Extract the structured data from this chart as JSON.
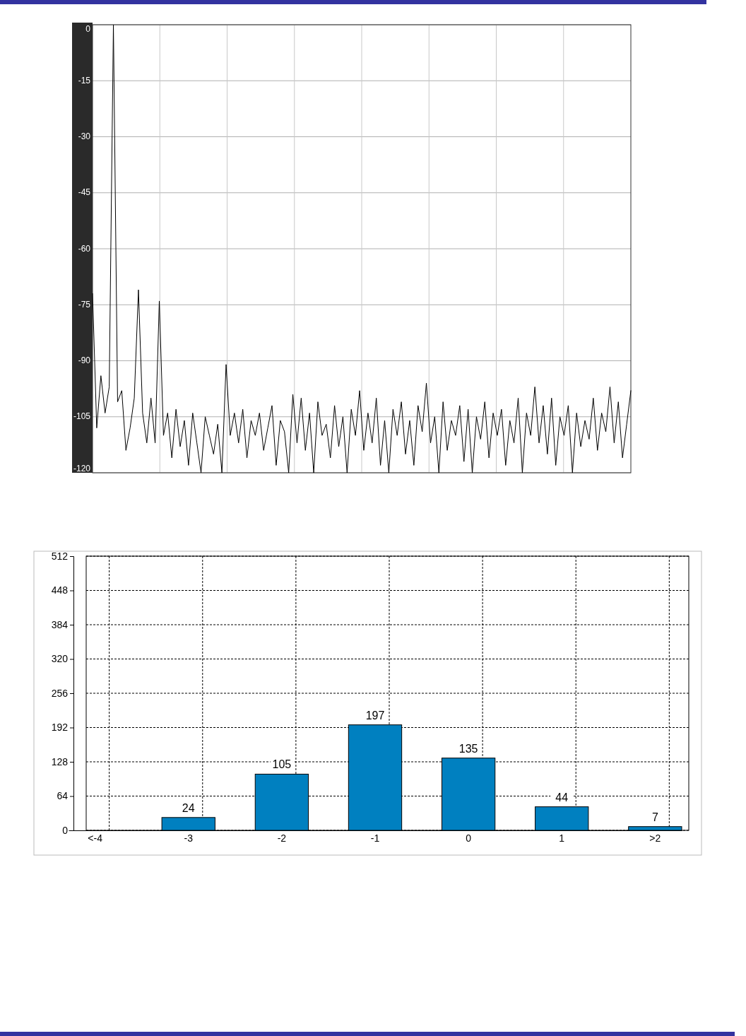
{
  "chart_data": [
    {
      "type": "line",
      "categories": [
        null,
        null,
        null,
        null,
        null,
        null,
        null,
        null,
        null,
        null,
        null,
        null,
        null,
        null,
        null,
        null,
        null,
        null,
        null,
        null,
        null,
        null,
        null,
        null,
        null,
        null,
        null,
        null,
        null,
        null,
        null,
        null,
        null,
        null,
        null,
        null,
        null,
        null,
        null,
        null,
        null,
        null,
        null,
        null,
        null,
        null,
        null,
        null,
        null,
        null,
        null,
        null,
        null,
        null,
        null,
        null,
        null,
        null,
        null,
        null,
        null,
        null,
        null,
        null,
        null,
        null,
        null,
        null,
        null,
        null,
        null,
        null,
        null,
        null,
        null,
        null,
        null,
        null,
        null,
        null,
        null,
        null,
        null,
        null,
        null,
        null,
        null,
        null,
        null,
        null,
        null,
        null,
        null,
        null,
        null,
        null,
        null,
        null,
        null,
        null,
        null,
        null,
        null,
        null,
        null,
        null,
        null,
        null,
        null,
        null,
        null,
        null,
        null,
        null,
        null,
        null,
        null,
        null,
        null,
        null,
        null,
        null,
        null,
        null,
        null,
        null,
        null,
        null,
        null,
        null
      ],
      "series": [
        {
          "color": "#000000",
          "values": [
            -72,
            -108,
            -94,
            -104,
            -97,
            0,
            -101,
            -98,
            -114,
            -108,
            -100,
            -71,
            -104,
            -112,
            -100,
            -112,
            -74,
            -110,
            -104,
            -116,
            -103,
            -113,
            -106,
            -118,
            -104,
            -112,
            -120,
            -105,
            -110,
            -115,
            -107,
            -120,
            -91,
            -110,
            -104,
            -112,
            -103,
            -116,
            -106,
            -110,
            -104,
            -114,
            -108,
            -102,
            -118,
            -106,
            -109,
            -120,
            -99,
            -112,
            -100,
            -114,
            -104,
            -120,
            -101,
            -110,
            -107,
            -116,
            -102,
            -113,
            -105,
            -120,
            -103,
            -110,
            -98,
            -114,
            -104,
            -112,
            -100,
            -118,
            -106,
            -120,
            -103,
            -110,
            -101,
            -115,
            -106,
            -118,
            -102,
            -109,
            -96,
            -112,
            -105,
            -120,
            -101,
            -114,
            -106,
            -110,
            -102,
            -117,
            -103,
            -120,
            -105,
            -111,
            -101,
            -116,
            -104,
            -110,
            -103,
            -118,
            -106,
            -112,
            -100,
            -120,
            -104,
            -110,
            -97,
            -112,
            -102,
            -115,
            -100,
            -118,
            -105,
            -110,
            -102,
            -120,
            -104,
            -113,
            -106,
            -111,
            -100,
            -114,
            -104,
            -109,
            -97,
            -112,
            -101,
            -116,
            -107,
            -98
          ]
        }
      ],
      "ylim": [
        -120,
        0
      ],
      "yticks": [
        0,
        -15,
        -30,
        -45,
        -60,
        -75,
        -90,
        -105,
        -120
      ],
      "grid": true,
      "tick_labels": "y"
    },
    {
      "type": "bar",
      "categories": [
        "<-4",
        "-3",
        "-2",
        "-1",
        "0",
        "1",
        ">2"
      ],
      "values": [
        0,
        24,
        105,
        197,
        135,
        44,
        7
      ],
      "value_labels": [
        null,
        "24",
        "105",
        "197",
        "135",
        "44",
        "7"
      ],
      "color": "#0080c0",
      "ylim": [
        0,
        512
      ],
      "yticks": [
        0,
        64,
        128,
        192,
        256,
        320,
        384,
        448,
        512
      ],
      "grid": true
    }
  ]
}
